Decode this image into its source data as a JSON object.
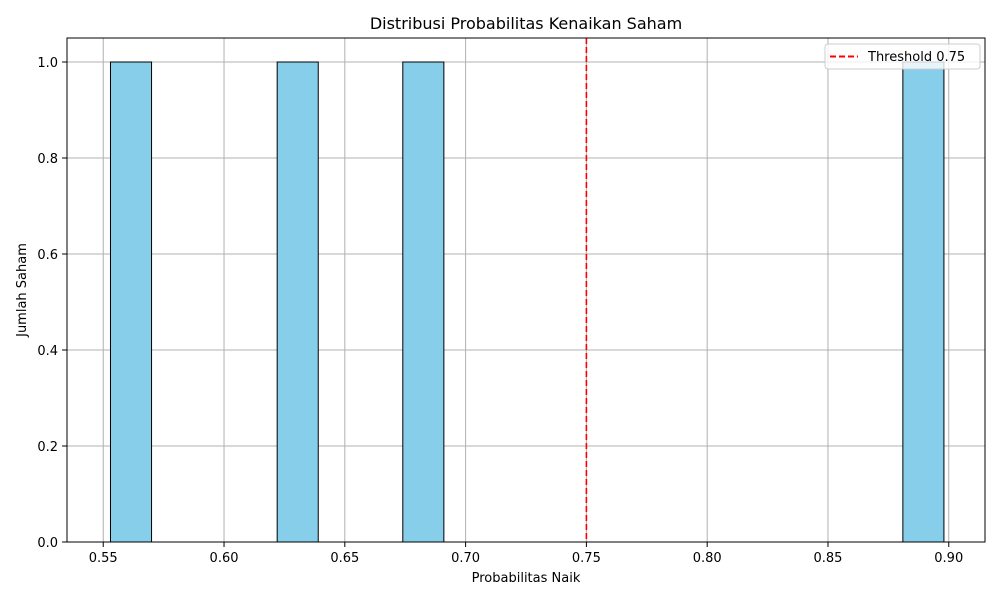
{
  "chart_data": {
    "type": "bar",
    "title": "Distribusi Probabilitas Kenaikan Saham",
    "xlabel": "Probabilitas Naik",
    "ylabel": "Jumlah Saham",
    "xlim": [
      0.535,
      0.915
    ],
    "ylim": [
      0,
      1.05
    ],
    "grid": true,
    "bar_color": "#87ceeb",
    "bar_edge_color": "#000000",
    "bins": [
      {
        "x_start": 0.553,
        "x_end": 0.57,
        "value": 1
      },
      {
        "x_start": 0.622,
        "x_end": 0.639,
        "value": 1
      },
      {
        "x_start": 0.674,
        "x_end": 0.691,
        "value": 1
      },
      {
        "x_start": 0.881,
        "x_end": 0.898,
        "value": 1
      }
    ],
    "x_ticks": [
      0.55,
      0.6,
      0.65,
      0.7,
      0.75,
      0.8,
      0.85,
      0.9
    ],
    "x_tick_labels": [
      "0.55",
      "0.60",
      "0.65",
      "0.70",
      "0.75",
      "0.80",
      "0.85",
      "0.90"
    ],
    "y_ticks": [
      0.0,
      0.2,
      0.4,
      0.6,
      0.8,
      1.0
    ],
    "y_tick_labels": [
      "0.0",
      "0.2",
      "0.4",
      "0.6",
      "0.8",
      "1.0"
    ],
    "threshold": {
      "value": 0.75,
      "color": "#ff0000",
      "label": "Threshold 0.75"
    },
    "legend_position": "top-right"
  }
}
